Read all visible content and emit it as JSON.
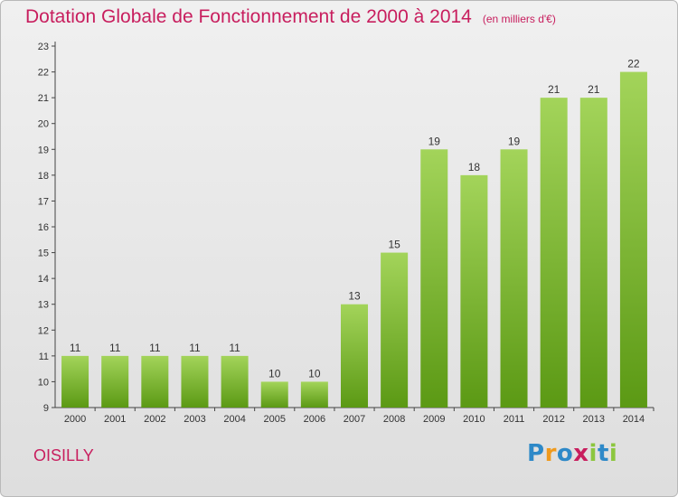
{
  "title": "Dotation Globale de Fonctionnement de 2000 à 2014",
  "subtitle": "(en milliers d'€)",
  "location": "OISILLY",
  "brand": {
    "letters": [
      "P",
      "r",
      "o",
      "x",
      "i",
      "t",
      "i"
    ],
    "colors": [
      "#2e89c8",
      "#f09a1c",
      "#2e89c8",
      "#c81e5e",
      "#8cc63e",
      "#2e89c8",
      "#8cc63e"
    ]
  },
  "colors": {
    "title": "#c81e5e",
    "bar_light": "#a3d45a",
    "bar_dark": "#5b9914",
    "axis": "#444444"
  },
  "chart_data": {
    "type": "bar",
    "title": "Dotation Globale de Fonctionnement de 2000 à 2014",
    "subtitle": "(en milliers d'€)",
    "categories": [
      "2000",
      "2001",
      "2002",
      "2003",
      "2004",
      "2005",
      "2006",
      "2007",
      "2008",
      "2009",
      "2010",
      "2011",
      "2012",
      "2013",
      "2014"
    ],
    "values": [
      11,
      11,
      11,
      11,
      11,
      10,
      10,
      13,
      15,
      19,
      18,
      19,
      21,
      21,
      22
    ],
    "data_labels": [
      "11",
      "11",
      "11",
      "11",
      "11",
      "10",
      "10",
      "13",
      "15",
      "19",
      "18",
      "19",
      "21",
      "21",
      "22"
    ],
    "ylim": [
      9,
      23
    ],
    "yticks": [
      9,
      10,
      11,
      12,
      13,
      14,
      15,
      16,
      17,
      18,
      19,
      20,
      21,
      22,
      23
    ],
    "grid": false,
    "legend": "none",
    "xlabel": "",
    "ylabel": ""
  }
}
